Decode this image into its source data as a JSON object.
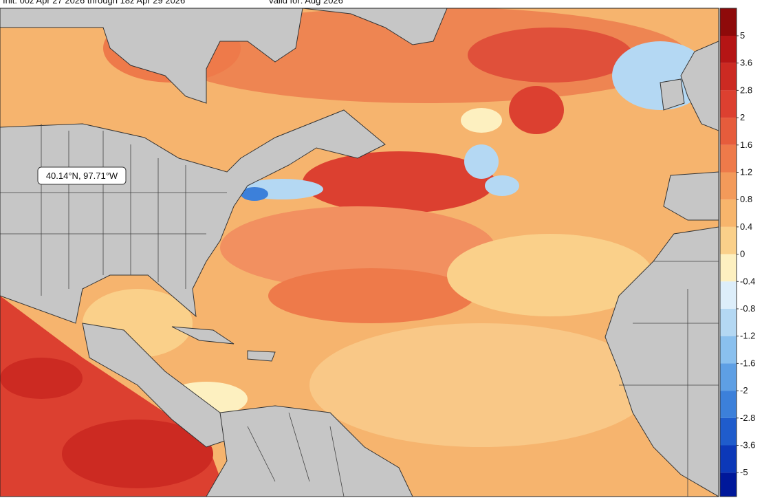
{
  "header": {
    "init": "Init: 00z Apr 27 2026 through 18z Apr 29 2026",
    "valid": "Valid for: Aug 2026"
  },
  "tooltip": "40.14°N, 97.71°W",
  "colorbar": {
    "ticks": [
      5,
      3.6,
      2.8,
      2,
      1.6,
      1.2,
      0.8,
      0.4,
      0,
      -0.4,
      -0.8,
      -1.2,
      -1.6,
      -2,
      -2.8,
      -3.6,
      -5
    ],
    "colors": [
      "#8e0a0a",
      "#b51515",
      "#cc2a22",
      "#dc4030",
      "#e65c3c",
      "#ee7a4a",
      "#f39a5a",
      "#f7b56c",
      "#fad08a",
      "#fdf0c0",
      "#ddeefa",
      "#b4d8f3",
      "#8ac0ee",
      "#5e9fe4",
      "#3c80da",
      "#1f5ccc",
      "#0c38b8",
      "#00189a"
    ]
  }
}
